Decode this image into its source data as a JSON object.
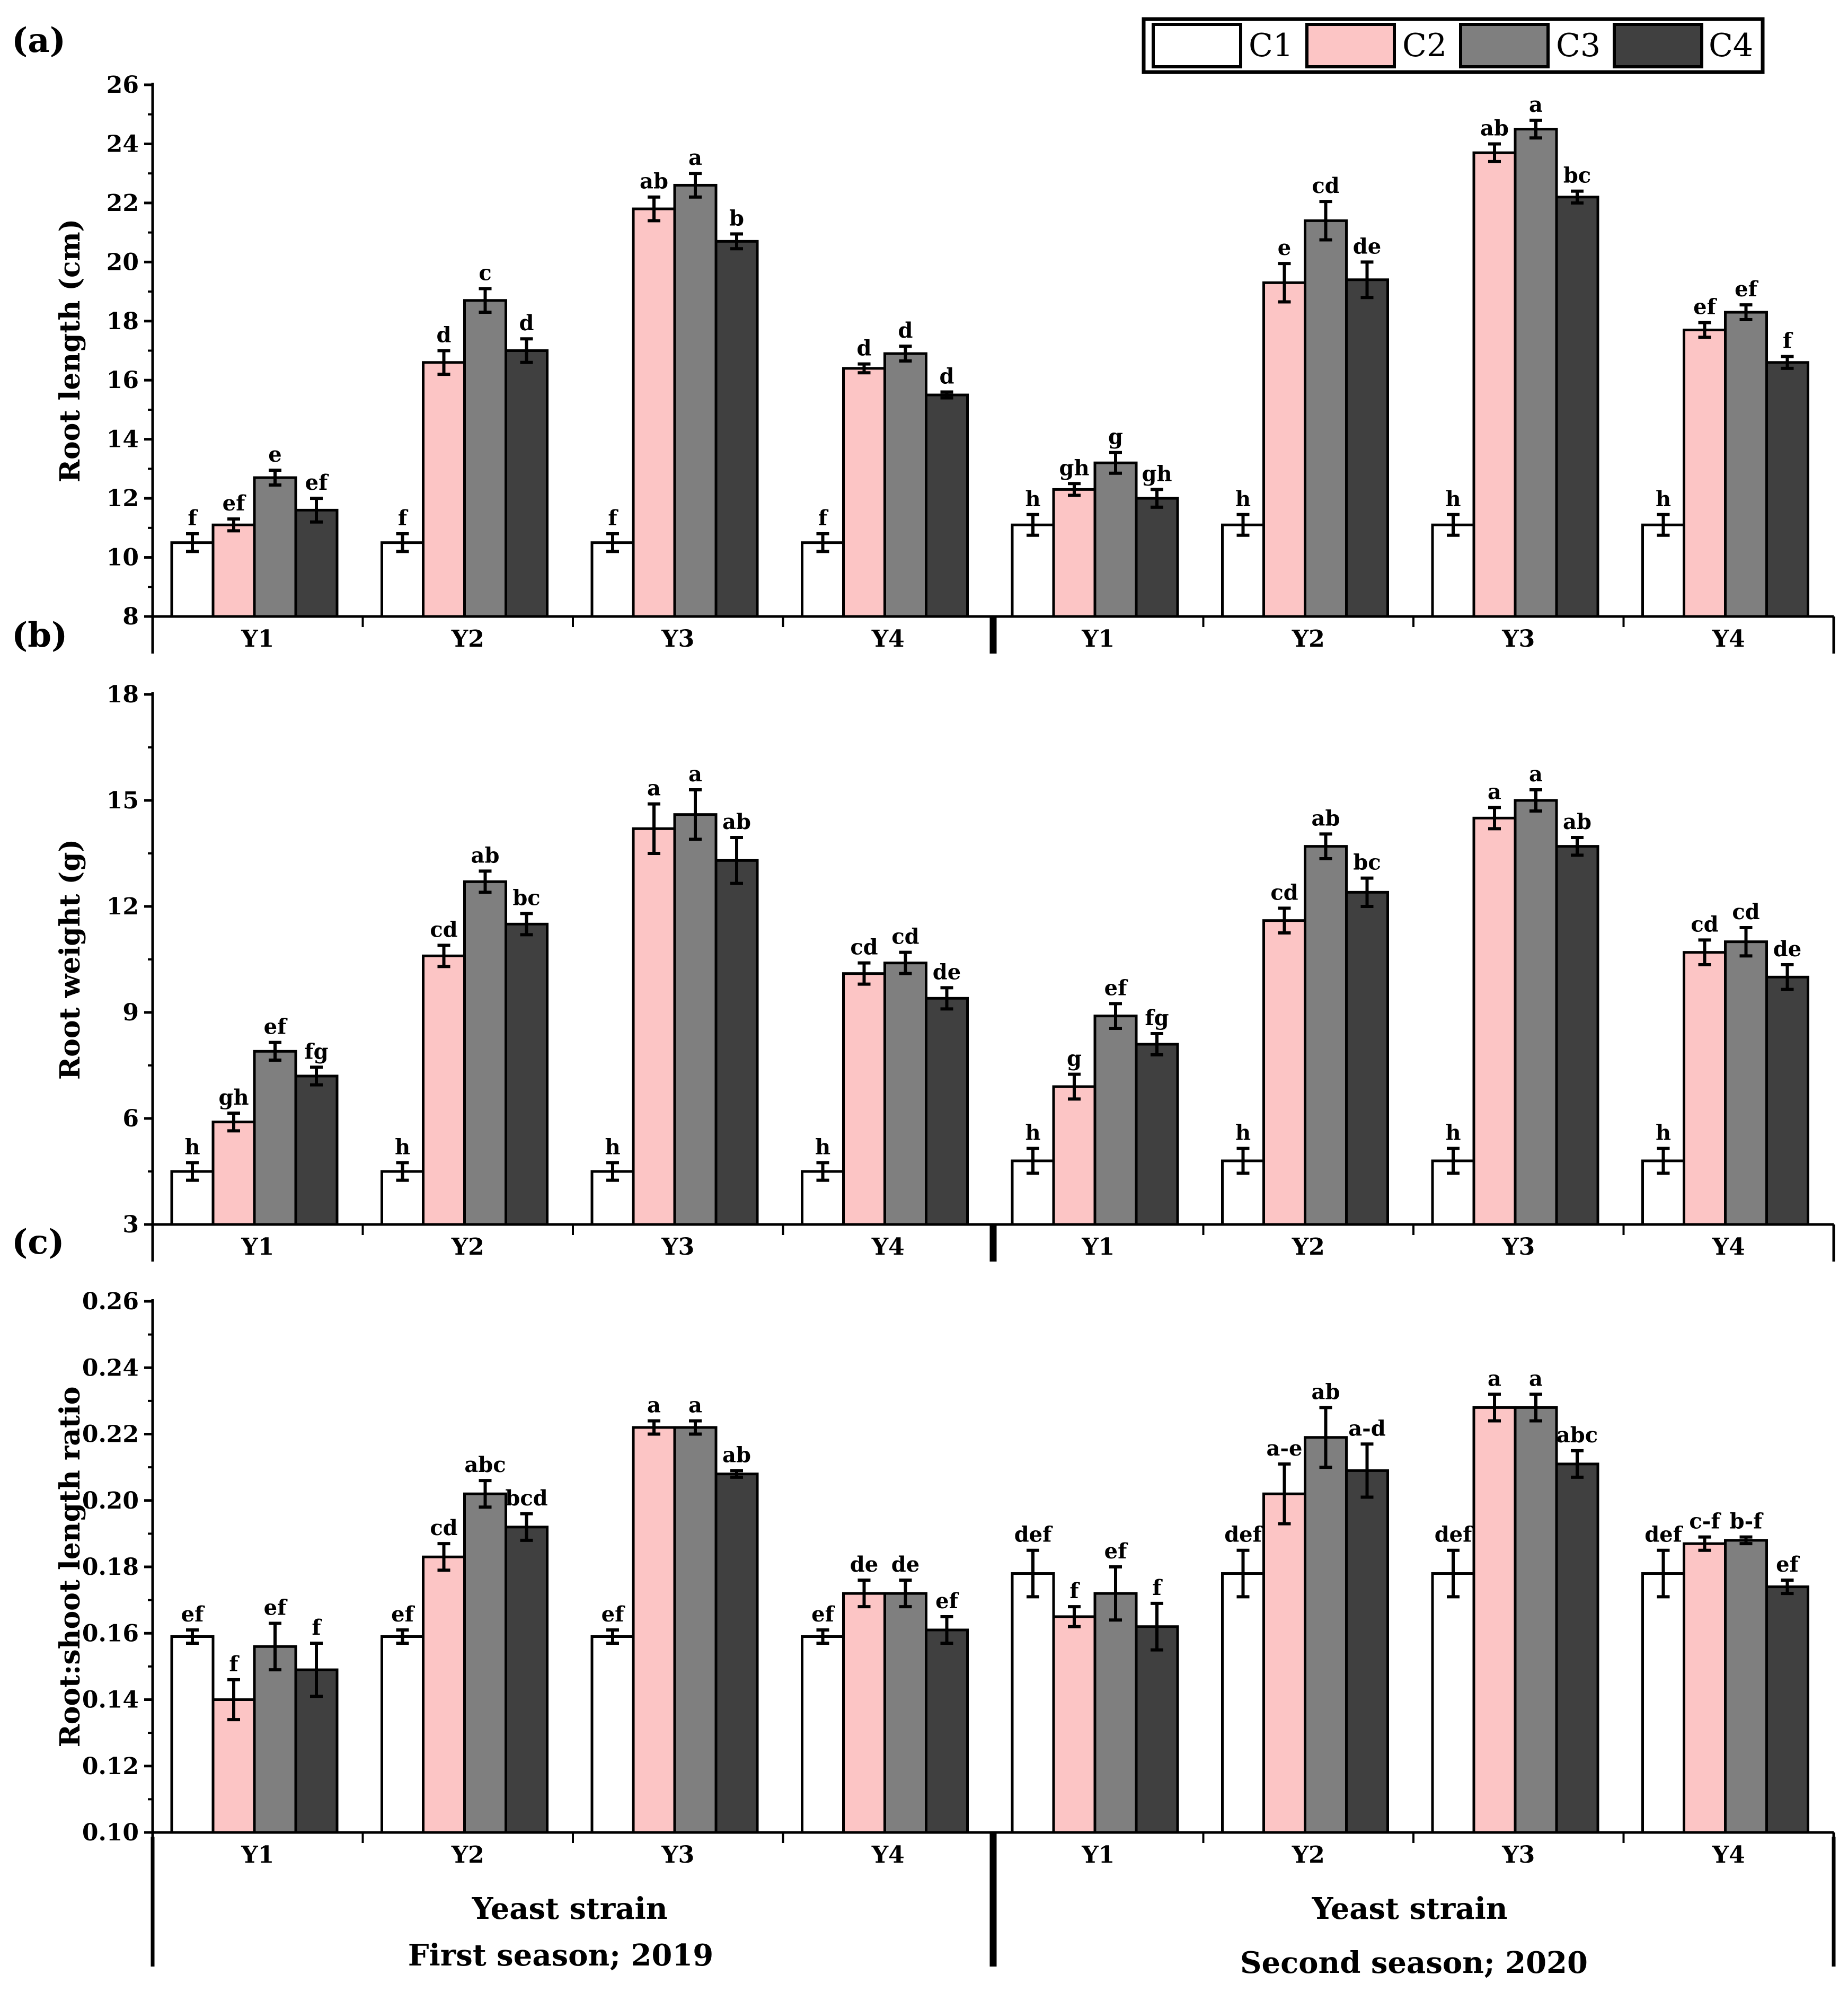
{
  "chart_data": [
    {
      "panel": "(a)",
      "type": "bar",
      "ylabel": "Root length (cm)",
      "ylim": [
        8,
        26
      ],
      "yticks": [
        8,
        10,
        12,
        14,
        16,
        18,
        20,
        22,
        24,
        26
      ],
      "seasons": [
        {
          "categories": [
            "Y1",
            "Y2",
            "Y3",
            "Y4"
          ],
          "series": [
            {
              "name": "C1",
              "values": [
                10.5,
                10.5,
                10.5,
                10.5
              ],
              "errors": [
                0.3,
                0.3,
                0.3,
                0.3
              ],
              "labels": [
                "f",
                "f",
                "f",
                "f"
              ]
            },
            {
              "name": "C2",
              "values": [
                11.1,
                16.6,
                21.8,
                16.4
              ],
              "errors": [
                0.2,
                0.4,
                0.4,
                0.15
              ],
              "labels": [
                "ef",
                "d",
                "ab",
                "d"
              ]
            },
            {
              "name": "C3",
              "values": [
                12.7,
                18.7,
                22.6,
                16.9
              ],
              "errors": [
                0.25,
                0.4,
                0.4,
                0.25
              ],
              "labels": [
                "e",
                "c",
                "a",
                "d"
              ]
            },
            {
              "name": "C4",
              "values": [
                11.6,
                17.0,
                20.7,
                15.5
              ],
              "errors": [
                0.4,
                0.4,
                0.25,
                0.1
              ],
              "labels": [
                "ef",
                "d",
                "b",
                "d"
              ]
            }
          ]
        },
        {
          "categories": [
            "Y1",
            "Y2",
            "Y3",
            "Y4"
          ],
          "series": [
            {
              "name": "C1",
              "values": [
                11.1,
                11.1,
                11.1,
                11.1
              ],
              "errors": [
                0.35,
                0.35,
                0.35,
                0.35
              ],
              "labels": [
                "h",
                "h",
                "h",
                "h"
              ]
            },
            {
              "name": "C2",
              "values": [
                12.3,
                19.3,
                23.7,
                17.7
              ],
              "errors": [
                0.2,
                0.65,
                0.3,
                0.25
              ],
              "labels": [
                "gh",
                "e",
                "ab",
                "ef"
              ]
            },
            {
              "name": "C3",
              "values": [
                13.2,
                21.4,
                24.5,
                18.3
              ],
              "errors": [
                0.35,
                0.65,
                0.3,
                0.25
              ],
              "labels": [
                "g",
                "cd",
                "a",
                "ef"
              ]
            },
            {
              "name": "C4",
              "values": [
                12.0,
                19.4,
                22.2,
                16.6
              ],
              "errors": [
                0.3,
                0.6,
                0.2,
                0.2
              ],
              "labels": [
                "gh",
                "de",
                "bc",
                "f"
              ]
            }
          ]
        }
      ]
    },
    {
      "panel": "(b)",
      "type": "bar",
      "ylabel": "Root weight (g)",
      "ylim": [
        3,
        18
      ],
      "yticks": [
        3,
        6,
        9,
        12,
        15,
        18
      ],
      "seasons": [
        {
          "categories": [
            "Y1",
            "Y2",
            "Y3",
            "Y4"
          ],
          "series": [
            {
              "name": "C1",
              "values": [
                4.5,
                4.5,
                4.5,
                4.5
              ],
              "errors": [
                0.25,
                0.25,
                0.25,
                0.25
              ],
              "labels": [
                "h",
                "h",
                "h",
                "h"
              ]
            },
            {
              "name": "C2",
              "values": [
                5.9,
                10.6,
                14.2,
                10.1
              ],
              "errors": [
                0.25,
                0.3,
                0.7,
                0.3
              ],
              "labels": [
                "gh",
                "cd",
                "a",
                "cd"
              ]
            },
            {
              "name": "C3",
              "values": [
                7.9,
                12.7,
                14.6,
                10.4
              ],
              "errors": [
                0.25,
                0.3,
                0.7,
                0.3
              ],
              "labels": [
                "ef",
                "ab",
                "a",
                "cd"
              ]
            },
            {
              "name": "C4",
              "values": [
                7.2,
                11.5,
                13.3,
                9.4
              ],
              "errors": [
                0.25,
                0.3,
                0.65,
                0.3
              ],
              "labels": [
                "fg",
                "bc",
                "ab",
                "de"
              ]
            }
          ]
        },
        {
          "categories": [
            "Y1",
            "Y2",
            "Y3",
            "Y4"
          ],
          "series": [
            {
              "name": "C1",
              "values": [
                4.8,
                4.8,
                4.8,
                4.8
              ],
              "errors": [
                0.35,
                0.35,
                0.35,
                0.35
              ],
              "labels": [
                "h",
                "h",
                "h",
                "h"
              ]
            },
            {
              "name": "C2",
              "values": [
                6.9,
                11.6,
                14.5,
                10.7
              ],
              "errors": [
                0.35,
                0.35,
                0.3,
                0.35
              ],
              "labels": [
                "g",
                "cd",
                "a",
                "cd"
              ]
            },
            {
              "name": "C3",
              "values": [
                8.9,
                13.7,
                15.0,
                11.0
              ],
              "errors": [
                0.35,
                0.35,
                0.3,
                0.4
              ],
              "labels": [
                "ef",
                "ab",
                "a",
                "cd"
              ]
            },
            {
              "name": "C4",
              "values": [
                8.1,
                12.4,
                13.7,
                10.0
              ],
              "errors": [
                0.3,
                0.4,
                0.25,
                0.35
              ],
              "labels": [
                "fg",
                "bc",
                "ab",
                "de"
              ]
            }
          ]
        }
      ]
    },
    {
      "panel": "(c)",
      "type": "bar",
      "ylabel": "Root:shoot length ratio",
      "ylim": [
        0.1,
        0.26
      ],
      "yticks": [
        "0.10",
        "0.12",
        "0.14",
        "0.16",
        "0.18",
        "0.20",
        "0.22",
        "0.24",
        "0.26"
      ],
      "seasons": [
        {
          "categories": [
            "Y1",
            "Y2",
            "Y3",
            "Y4"
          ],
          "series": [
            {
              "name": "C1",
              "values": [
                0.159,
                0.159,
                0.159,
                0.159
              ],
              "errors": [
                0.002,
                0.002,
                0.002,
                0.002
              ],
              "labels": [
                "ef",
                "ef",
                "ef",
                "ef"
              ]
            },
            {
              "name": "C2",
              "values": [
                0.14,
                0.183,
                0.222,
                0.172
              ],
              "errors": [
                0.006,
                0.004,
                0.002,
                0.004
              ],
              "labels": [
                "f",
                "cd",
                "a",
                "de"
              ]
            },
            {
              "name": "C3",
              "values": [
                0.156,
                0.202,
                0.222,
                0.172
              ],
              "errors": [
                0.007,
                0.004,
                0.002,
                0.004
              ],
              "labels": [
                "ef",
                "abc",
                "a",
                "de"
              ]
            },
            {
              "name": "C4",
              "values": [
                0.149,
                0.192,
                0.208,
                0.161
              ],
              "errors": [
                0.008,
                0.004,
                0.001,
                0.004
              ],
              "labels": [
                "f",
                "bcd",
                "ab",
                "ef"
              ]
            }
          ]
        },
        {
          "categories": [
            "Y1",
            "Y2",
            "Y3",
            "Y4"
          ],
          "series": [
            {
              "name": "C1",
              "values": [
                0.178,
                0.178,
                0.178,
                0.178
              ],
              "errors": [
                0.007,
                0.007,
                0.007,
                0.007
              ],
              "labels": [
                "def",
                "def",
                "def",
                "def"
              ]
            },
            {
              "name": "C2",
              "values": [
                0.165,
                0.202,
                0.228,
                0.187
              ],
              "errors": [
                0.003,
                0.009,
                0.004,
                0.002
              ],
              "labels": [
                "f",
                "a-e",
                "a",
                "c-f"
              ]
            },
            {
              "name": "C3",
              "values": [
                0.172,
                0.219,
                0.228,
                0.188
              ],
              "errors": [
                0.008,
                0.009,
                0.004,
                0.001
              ],
              "labels": [
                "ef",
                "ab",
                "a",
                "b-f"
              ]
            },
            {
              "name": "C4",
              "values": [
                0.162,
                0.209,
                0.211,
                0.174
              ],
              "errors": [
                0.007,
                0.008,
                0.004,
                0.002
              ],
              "labels": [
                "f",
                "a-d",
                "abc",
                "ef"
              ]
            }
          ]
        }
      ]
    }
  ],
  "legend": {
    "entries": [
      {
        "name": "C1",
        "color": "#ffffff"
      },
      {
        "name": "C2",
        "color": "#fcc5c5"
      },
      {
        "name": "C3",
        "color": "#7f7f7f"
      },
      {
        "name": "C4",
        "color": "#404040"
      }
    ]
  },
  "footer": {
    "xlabel_left": "Yeast strain",
    "xlabel_right": "Yeast strain",
    "season_left": "First season; 2019",
    "season_right": "Second season; 2020"
  }
}
